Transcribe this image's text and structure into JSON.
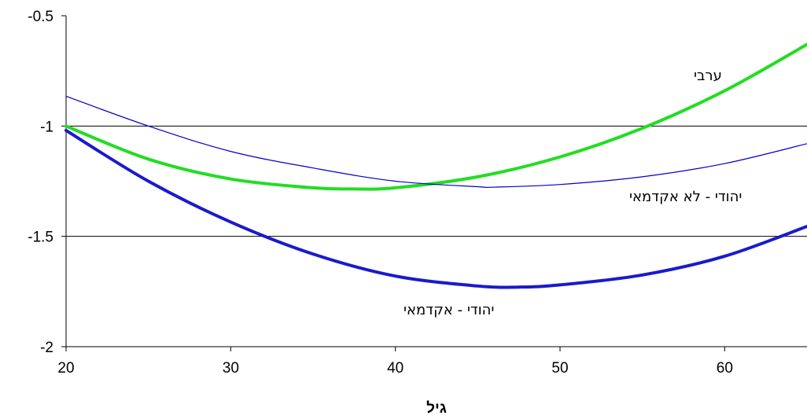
{
  "chart_data": {
    "type": "line",
    "title": "",
    "xlabel": "גיל",
    "ylabel": "",
    "xlim": [
      20,
      65
    ],
    "ylim": [
      -2,
      -0.5
    ],
    "x_ticks": [
      "20",
      "30",
      "40",
      "50",
      "60"
    ],
    "y_ticks": [
      "-0.5",
      "-1",
      "-1.5",
      "-2"
    ],
    "grid": "horizontal",
    "series": [
      {
        "name": "ערבי",
        "color": "#22dd22",
        "style": "thick",
        "x": [
          20,
          25,
          30,
          35,
          37.5,
          40,
          45,
          50,
          55,
          60,
          65
        ],
        "y": [
          -1.0,
          -1.15,
          -1.24,
          -1.28,
          -1.285,
          -1.28,
          -1.23,
          -1.14,
          -1.01,
          -0.84,
          -0.63
        ]
      },
      {
        "name": "יהודי - לא אקדמאי",
        "color": "#0000cc",
        "style": "thin",
        "x": [
          20,
          25,
          30,
          35,
          40,
          45,
          46,
          50,
          55,
          60,
          65
        ],
        "y": [
          -0.865,
          -1.0,
          -1.115,
          -1.19,
          -1.25,
          -1.275,
          -1.277,
          -1.265,
          -1.23,
          -1.17,
          -1.08
        ]
      },
      {
        "name": "יהודי - אקדמאי",
        "color": "#1a1acc",
        "style": "thick",
        "x": [
          20,
          25,
          30,
          35,
          40,
          45,
          47.5,
          50,
          55,
          60,
          65
        ],
        "y": [
          -1.02,
          -1.25,
          -1.435,
          -1.58,
          -1.68,
          -1.725,
          -1.73,
          -1.72,
          -1.675,
          -1.59,
          -1.455
        ]
      }
    ],
    "annotations": [
      "ערבי",
      "יהודי - לא אקדמאי",
      "יהודי - אקדמאי"
    ]
  }
}
